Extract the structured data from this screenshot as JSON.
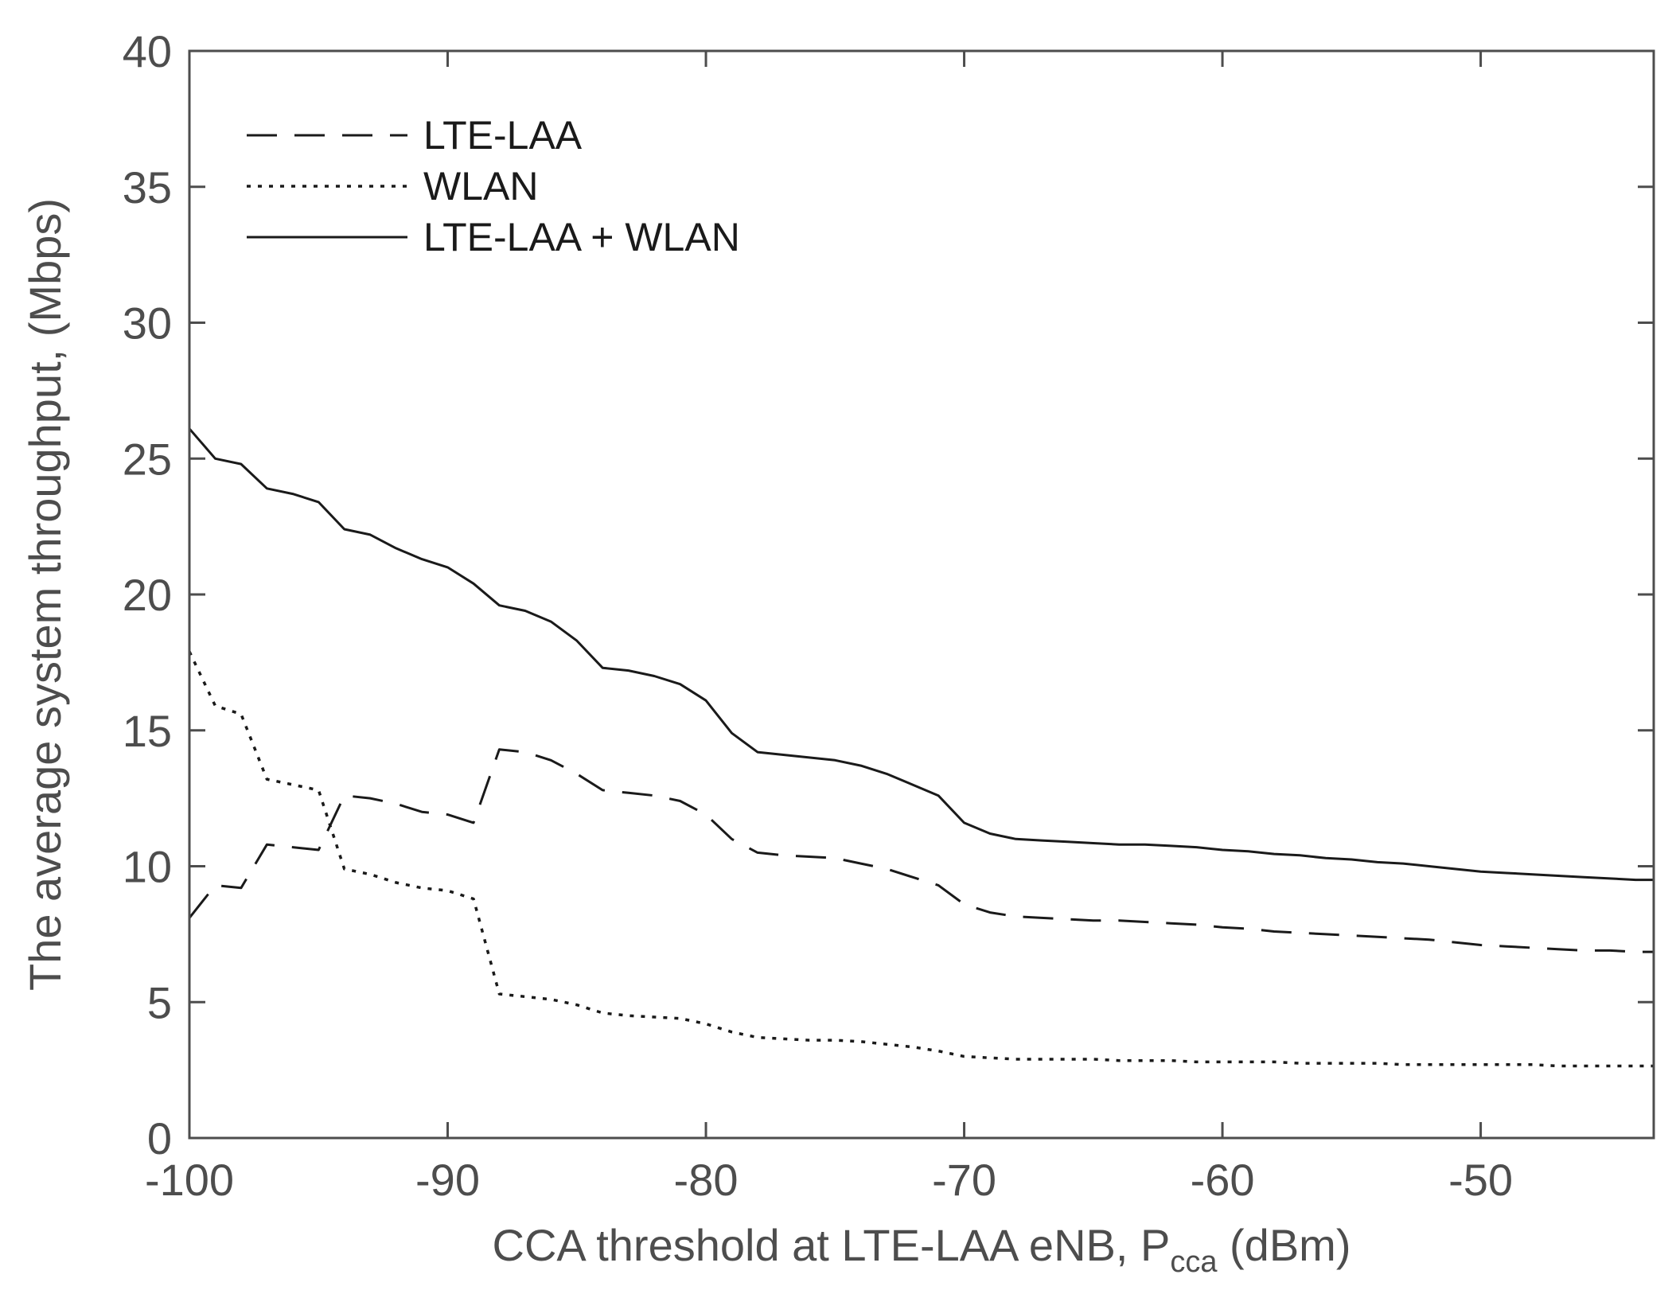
{
  "chart_data": {
    "type": "line",
    "title": "",
    "xlabel": "CCA threshold at LTE-LAA eNB, P",
    "xlabel_subscript": "cca",
    "xlabel_suffix": " (dBm)",
    "ylabel": "The average system throughput, (Mbps)",
    "xlim": [
      -100,
      -43.3
    ],
    "ylim": [
      0,
      40
    ],
    "xticks": [
      -100,
      -90,
      -80,
      -70,
      -60,
      -50
    ],
    "yticks": [
      0,
      5,
      10,
      15,
      20,
      25,
      30,
      35,
      40
    ],
    "grid": false,
    "legend_position": "top-left",
    "series": [
      {
        "name": "LTE-LAA",
        "style": "dashed",
        "x": [
          -100,
          -99,
          -98,
          -97,
          -96,
          -95,
          -94,
          -93,
          -92,
          -91,
          -90,
          -89,
          -88,
          -87,
          -86,
          -85,
          -84,
          -83,
          -82,
          -81,
          -80,
          -79,
          -78,
          -77,
          -76,
          -75,
          -74,
          -73,
          -72,
          -71,
          -70,
          -69,
          -68,
          -67,
          -66,
          -65,
          -64,
          -63,
          -62,
          -61,
          -60,
          -59,
          -58,
          -57,
          -56,
          -55,
          -54,
          -53,
          -52,
          -51,
          -50,
          -49,
          -48,
          -47,
          -46,
          -45,
          -44,
          -43.3
        ],
        "values": [
          8.1,
          9.3,
          9.2,
          10.8,
          10.7,
          10.6,
          12.6,
          12.5,
          12.3,
          12.0,
          11.9,
          11.6,
          14.3,
          14.2,
          13.9,
          13.4,
          12.8,
          12.7,
          12.6,
          12.4,
          11.9,
          11.0,
          10.5,
          10.4,
          10.35,
          10.3,
          10.1,
          9.9,
          9.6,
          9.3,
          8.6,
          8.3,
          8.15,
          8.1,
          8.05,
          8.0,
          8.0,
          7.95,
          7.9,
          7.85,
          7.75,
          7.7,
          7.6,
          7.55,
          7.5,
          7.45,
          7.4,
          7.35,
          7.3,
          7.2,
          7.1,
          7.05,
          7.0,
          6.95,
          6.9,
          6.9,
          6.85,
          6.85
        ]
      },
      {
        "name": "WLAN",
        "style": "dotted",
        "x": [
          -100,
          -99,
          -98,
          -97,
          -96,
          -95,
          -94,
          -93,
          -92,
          -91,
          -90,
          -89,
          -88,
          -87,
          -86,
          -85,
          -84,
          -83,
          -82,
          -81,
          -80,
          -79,
          -78,
          -77,
          -76,
          -75,
          -74,
          -73,
          -72,
          -71,
          -70,
          -69,
          -68,
          -67,
          -66,
          -65,
          -64,
          -63,
          -62,
          -61,
          -60,
          -59,
          -58,
          -57,
          -56,
          -55,
          -54,
          -53,
          -52,
          -51,
          -50,
          -49,
          -48,
          -47,
          -46,
          -45,
          -44,
          -43.3
        ],
        "values": [
          17.9,
          15.9,
          15.6,
          13.2,
          13.0,
          12.8,
          9.9,
          9.7,
          9.4,
          9.2,
          9.1,
          8.8,
          5.3,
          5.2,
          5.1,
          4.9,
          4.6,
          4.5,
          4.45,
          4.4,
          4.2,
          3.9,
          3.7,
          3.65,
          3.6,
          3.6,
          3.55,
          3.45,
          3.35,
          3.2,
          3.0,
          2.95,
          2.9,
          2.9,
          2.9,
          2.9,
          2.85,
          2.85,
          2.85,
          2.8,
          2.8,
          2.8,
          2.8,
          2.75,
          2.75,
          2.75,
          2.75,
          2.7,
          2.7,
          2.7,
          2.7,
          2.7,
          2.7,
          2.65,
          2.65,
          2.65,
          2.65,
          2.65
        ]
      },
      {
        "name": "LTE-LAA + WLAN",
        "style": "solid",
        "x": [
          -100,
          -99,
          -98,
          -97,
          -96,
          -95,
          -94,
          -93,
          -92,
          -91,
          -90,
          -89,
          -88,
          -87,
          -86,
          -85,
          -84,
          -83,
          -82,
          -81,
          -80,
          -79,
          -78,
          -77,
          -76,
          -75,
          -74,
          -73,
          -72,
          -71,
          -70,
          -69,
          -68,
          -67,
          -66,
          -65,
          -64,
          -63,
          -62,
          -61,
          -60,
          -59,
          -58,
          -57,
          -56,
          -55,
          -54,
          -53,
          -52,
          -51,
          -50,
          -49,
          -48,
          -47,
          -46,
          -45,
          -44,
          -43.3
        ],
        "values": [
          26.1,
          25.0,
          24.8,
          23.9,
          23.7,
          23.4,
          22.4,
          22.2,
          21.7,
          21.3,
          21.0,
          20.4,
          19.6,
          19.4,
          19.0,
          18.3,
          17.3,
          17.2,
          17.0,
          16.7,
          16.1,
          14.9,
          14.2,
          14.1,
          14.0,
          13.9,
          13.7,
          13.4,
          13.0,
          12.6,
          11.6,
          11.2,
          11.0,
          10.95,
          10.9,
          10.85,
          10.8,
          10.8,
          10.75,
          10.7,
          10.6,
          10.55,
          10.45,
          10.4,
          10.3,
          10.25,
          10.15,
          10.1,
          10.0,
          9.9,
          9.8,
          9.75,
          9.7,
          9.65,
          9.6,
          9.55,
          9.5,
          9.5
        ]
      }
    ]
  }
}
